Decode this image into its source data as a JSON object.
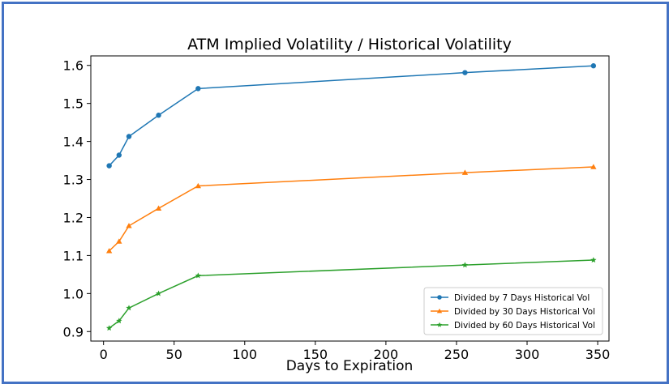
{
  "chart_data": {
    "type": "line",
    "title": "ATM Implied Volatility / Historical Volatility",
    "xlabel": "Days to Expiration",
    "ylabel": "",
    "xlim": [
      -9,
      358
    ],
    "ylim": [
      0.875,
      1.625
    ],
    "xticks": [
      0,
      50,
      100,
      150,
      200,
      250,
      300,
      350
    ],
    "xtick_labels": [
      "0",
      "50",
      "100",
      "150",
      "200",
      "250",
      "300",
      "350"
    ],
    "yticks": [
      0.9,
      1.0,
      1.1,
      1.2,
      1.3,
      1.4,
      1.5,
      1.6
    ],
    "ytick_labels": [
      "0.9",
      "1.0",
      "1.1",
      "1.2",
      "1.3",
      "1.4",
      "1.5",
      "1.6"
    ],
    "grid": false,
    "legend_position": "bottom-right",
    "series": [
      {
        "name": "Divided by 7 Days Historical Vol",
        "color": "#1f77b4",
        "marker": "circle",
        "x": [
          4,
          11,
          18,
          39,
          67,
          256,
          347
        ],
        "y": [
          1.336,
          1.364,
          1.413,
          1.469,
          1.539,
          1.581,
          1.599
        ]
      },
      {
        "name": "Divided by 30 Days Historical Vol",
        "color": "#ff7f0e",
        "marker": "triangle",
        "x": [
          4,
          11,
          18,
          39,
          67,
          256,
          347
        ],
        "y": [
          1.112,
          1.137,
          1.178,
          1.224,
          1.283,
          1.318,
          1.333
        ]
      },
      {
        "name": "Divided by 60 Days Historical Vol",
        "color": "#2ca02c",
        "marker": "star",
        "x": [
          4,
          11,
          18,
          39,
          67,
          256,
          347
        ],
        "y": [
          0.909,
          0.928,
          0.962,
          1.0,
          1.047,
          1.075,
          1.088
        ]
      }
    ]
  }
}
